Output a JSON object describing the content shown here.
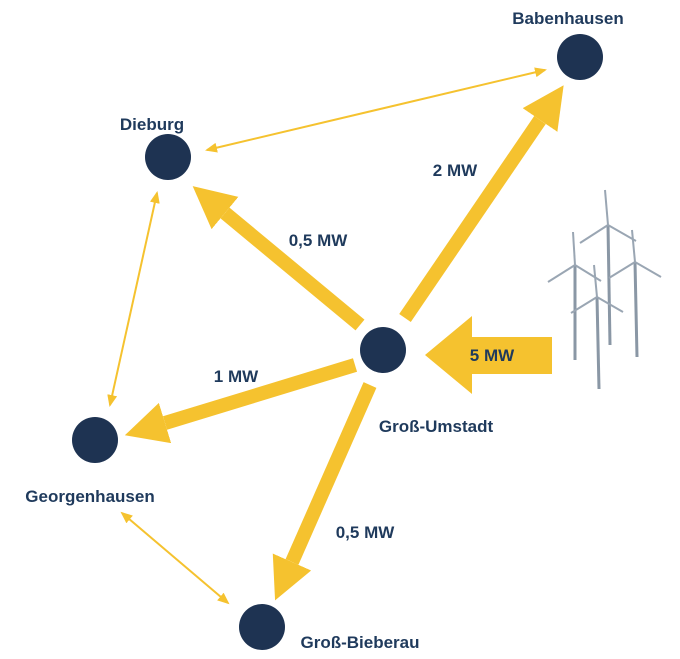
{
  "nodes": [
    {
      "label": "Babenhausen"
    },
    {
      "label": "Dieburg"
    },
    {
      "label": "Groß-Umstadt"
    },
    {
      "label": "Georgenhausen"
    },
    {
      "label": "Groß-Bieberau"
    }
  ],
  "flows": [
    {
      "label": "2 MW"
    },
    {
      "label": "0,5 MW"
    },
    {
      "label": "1 MW"
    },
    {
      "label": "0,5 MW"
    },
    {
      "label": "5 MW"
    }
  ]
}
